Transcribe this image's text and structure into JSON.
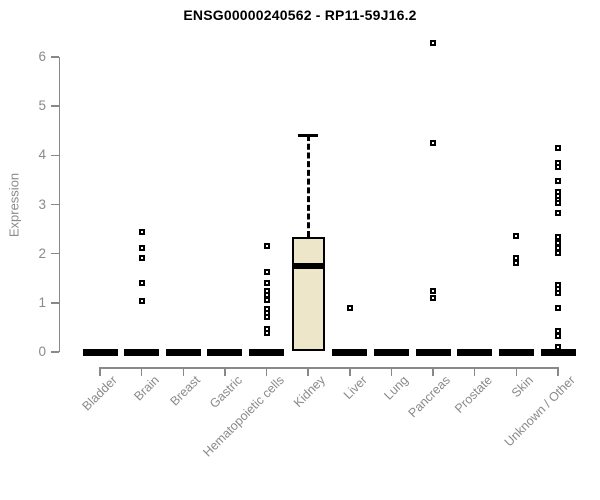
{
  "title": "ENSG00000240562 - RP11-59J16.2",
  "chart_data": {
    "type": "boxplot",
    "title": "ENSG00000240562 - RP11-59J16.2",
    "xlabel": "",
    "ylabel": "Expression",
    "ylim": [
      0,
      6.45
    ],
    "yticks": [
      0,
      1,
      2,
      3,
      4,
      5,
      6
    ],
    "grid": false,
    "legend": "none",
    "categories": [
      "Bladder",
      "Brain",
      "Breast",
      "Gastric",
      "Hematopoietic cells",
      "Kidney",
      "Liver",
      "Lung",
      "Pancreas",
      "Prostate",
      "Skin",
      "Unknown / Other"
    ],
    "boxes": [
      {
        "category": "Bladder",
        "q1": 0,
        "median": 0,
        "q3": 0,
        "whisker_low": 0,
        "whisker_high": 0,
        "outliers": []
      },
      {
        "category": "Brain",
        "q1": 0,
        "median": 0,
        "q3": 0,
        "whisker_low": 0,
        "whisker_high": 0,
        "outliers": [
          2.44,
          2.11,
          1.91,
          1.4,
          1.04
        ]
      },
      {
        "category": "Breast",
        "q1": 0,
        "median": 0,
        "q3": 0,
        "whisker_low": 0,
        "whisker_high": 0,
        "outliers": []
      },
      {
        "category": "Gastric",
        "q1": 0,
        "median": 0,
        "q3": 0,
        "whisker_low": 0,
        "whisker_high": 0,
        "outliers": []
      },
      {
        "category": "Hematopoietic cells",
        "q1": 0,
        "median": 0,
        "q3": 0,
        "whisker_low": 0,
        "whisker_high": 0,
        "outliers": [
          2.16,
          1.63,
          1.4,
          1.24,
          1.16,
          1.06,
          0.88,
          0.8,
          0.72,
          0.47,
          0.39
        ]
      },
      {
        "category": "Kidney",
        "q1": 0.02,
        "median": 1.74,
        "q3": 2.33,
        "whisker_low": 0.02,
        "whisker_high": 4.41,
        "outliers": []
      },
      {
        "category": "Liver",
        "q1": 0,
        "median": 0,
        "q3": 0,
        "whisker_low": 0,
        "whisker_high": 0,
        "outliers": [
          0.9
        ]
      },
      {
        "category": "Lung",
        "q1": 0,
        "median": 0,
        "q3": 0,
        "whisker_low": 0,
        "whisker_high": 0,
        "outliers": []
      },
      {
        "category": "Pancreas",
        "q1": 0,
        "median": 0,
        "q3": 0,
        "whisker_low": 0,
        "whisker_high": 0,
        "outliers": [
          6.28,
          4.25,
          1.24,
          1.1
        ]
      },
      {
        "category": "Prostate",
        "q1": 0,
        "median": 0,
        "q3": 0,
        "whisker_low": 0,
        "whisker_high": 0,
        "outliers": []
      },
      {
        "category": "Skin",
        "q1": 0,
        "median": 0,
        "q3": 0,
        "whisker_low": 0,
        "whisker_high": 0,
        "outliers": [
          2.36,
          1.91,
          1.82
        ]
      },
      {
        "category": "Unknown / Other",
        "q1": 0,
        "median": 0,
        "q3": 0,
        "whisker_low": 0,
        "whisker_high": 0,
        "outliers": [
          4.15,
          3.84,
          3.76,
          3.48,
          3.25,
          3.17,
          3.09,
          3.03,
          2.83,
          2.34,
          2.22,
          2.11,
          2.01,
          1.36,
          1.28,
          1.2,
          0.9,
          0.42,
          0.32,
          0.1
        ]
      }
    ],
    "colors": {
      "box_fill": "#EDE6C9",
      "box_border": "#000000",
      "axis": "#888888",
      "tick_label": "#8a8a8a",
      "title": "#000000",
      "outlier_fill": "#ffffff"
    }
  }
}
